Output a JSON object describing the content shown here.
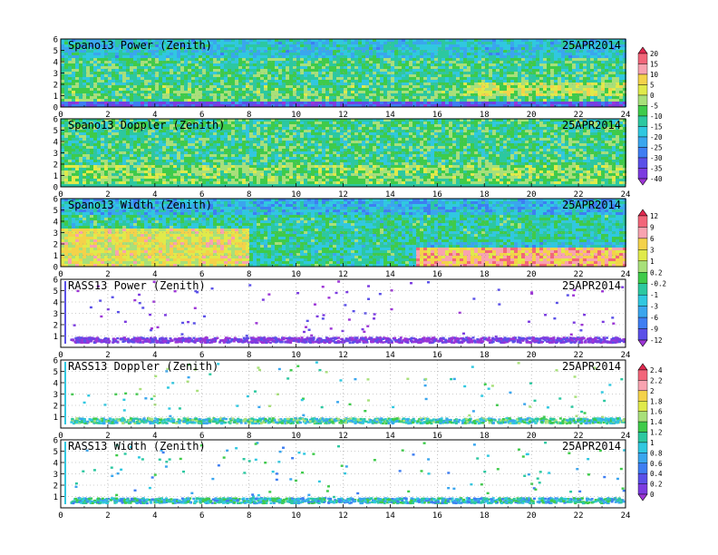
{
  "chart_data": [
    {
      "type": "heatmap",
      "title": "Spano13 Power (Zenith)",
      "date": "25APR2014",
      "xlim": [
        0,
        24
      ],
      "ylim": [
        0,
        6
      ],
      "xticks": [
        "0",
        "2",
        "4",
        "6",
        "8",
        "10",
        "12",
        "14",
        "16",
        "18",
        "20",
        "22",
        "24"
      ],
      "yticks": [
        "0",
        "1",
        "2",
        "3",
        "4",
        "5",
        "6"
      ],
      "colorbar": {
        "levels": [
          "20",
          "15",
          "10",
          "5",
          "0",
          "-5",
          "-10",
          "-15",
          "-20",
          "-25",
          "-30",
          "-35",
          "-40"
        ],
        "colors": [
          "#e0284f",
          "#f2667a",
          "#f8a3b0",
          "#f4d24a",
          "#e0ea4a",
          "#a8e07a",
          "#3ecb4a",
          "#2cc8a0",
          "#30c8e0",
          "#3aa6ee",
          "#3e7ef2",
          "#5a50e8",
          "#7c3ce0",
          "#9d35d6"
        ]
      }
    },
    {
      "type": "heatmap",
      "title": "Spano13 Doppler (Zenith)",
      "date": "25APR2014",
      "xlim": [
        0,
        24
      ],
      "ylim": [
        0,
        6
      ],
      "xticks": [
        "0",
        "2",
        "4",
        "6",
        "8",
        "10",
        "12",
        "14",
        "16",
        "18",
        "20",
        "22",
        "24"
      ],
      "yticks": [
        "0",
        "1",
        "2",
        "3",
        "4",
        "5",
        "6"
      ]
    },
    {
      "type": "heatmap",
      "title": "Spano13 Width (Zenith)",
      "date": "25APR2014",
      "xlim": [
        0,
        24
      ],
      "ylim": [
        0,
        6
      ],
      "xticks": [
        "0",
        "2",
        "4",
        "6",
        "8",
        "10",
        "12",
        "14",
        "16",
        "18",
        "20",
        "22",
        "24"
      ],
      "yticks": [
        "0",
        "1",
        "2",
        "3",
        "4",
        "5",
        "6"
      ],
      "colorbar": {
        "levels": [
          "12",
          "9",
          "6",
          "3",
          "1",
          "0.2",
          "-0.2",
          "-1",
          "-3",
          "-6",
          "-9",
          "-12"
        ],
        "colors": [
          "#e0284f",
          "#f2667a",
          "#f8a3b0",
          "#f4d24a",
          "#e0ea4a",
          "#a8e07a",
          "#3ecb4a",
          "#2cc8a0",
          "#30c8e0",
          "#3aa6ee",
          "#3e7ef2",
          "#5a50e8",
          "#9d35d6"
        ]
      }
    },
    {
      "type": "heatmap",
      "title": "RASS13 Power (Zenith)",
      "date": "25APR2014",
      "xlim": [
        0,
        24
      ],
      "ylim": [
        0,
        6
      ],
      "xticks": [
        "0",
        "2",
        "4",
        "6",
        "8",
        "10",
        "12",
        "14",
        "16",
        "18",
        "20",
        "22",
        "24"
      ],
      "yticks": [
        "1",
        "2",
        "3",
        "4",
        "5",
        "6"
      ]
    },
    {
      "type": "heatmap",
      "title": "RASS13 Doppler (Zenith)",
      "date": "25APR2014",
      "xlim": [
        0,
        24
      ],
      "ylim": [
        0,
        6
      ],
      "xticks": [
        "0",
        "2",
        "4",
        "6",
        "8",
        "10",
        "12",
        "14",
        "16",
        "18",
        "20",
        "22",
        "24"
      ],
      "yticks": [
        "1",
        "2",
        "3",
        "4",
        "5",
        "6"
      ],
      "colorbar": {
        "levels": [
          "2.4",
          "2.2",
          "2",
          "1.8",
          "1.6",
          "1.4",
          "1.2",
          "1",
          "0.8",
          "0.6",
          "0.4",
          "0.2",
          "0"
        ],
        "colors": [
          "#e0284f",
          "#f2667a",
          "#f8a3b0",
          "#f4d24a",
          "#e0ea4a",
          "#a8e07a",
          "#3ecb4a",
          "#2cc8a0",
          "#30c8e0",
          "#3aa6ee",
          "#3e7ef2",
          "#5a50e8",
          "#7c3ce0",
          "#9d35d6"
        ]
      }
    },
    {
      "type": "heatmap",
      "title": "RASS13 Width (Zenith)",
      "date": "25APR2014",
      "xlim": [
        0,
        24
      ],
      "ylim": [
        0,
        6
      ],
      "xticks": [
        "0",
        "2",
        "4",
        "6",
        "8",
        "10",
        "12",
        "14",
        "16",
        "18",
        "20",
        "22",
        "24"
      ],
      "yticks": [
        "1",
        "2",
        "3",
        "4",
        "5",
        "6"
      ]
    }
  ]
}
